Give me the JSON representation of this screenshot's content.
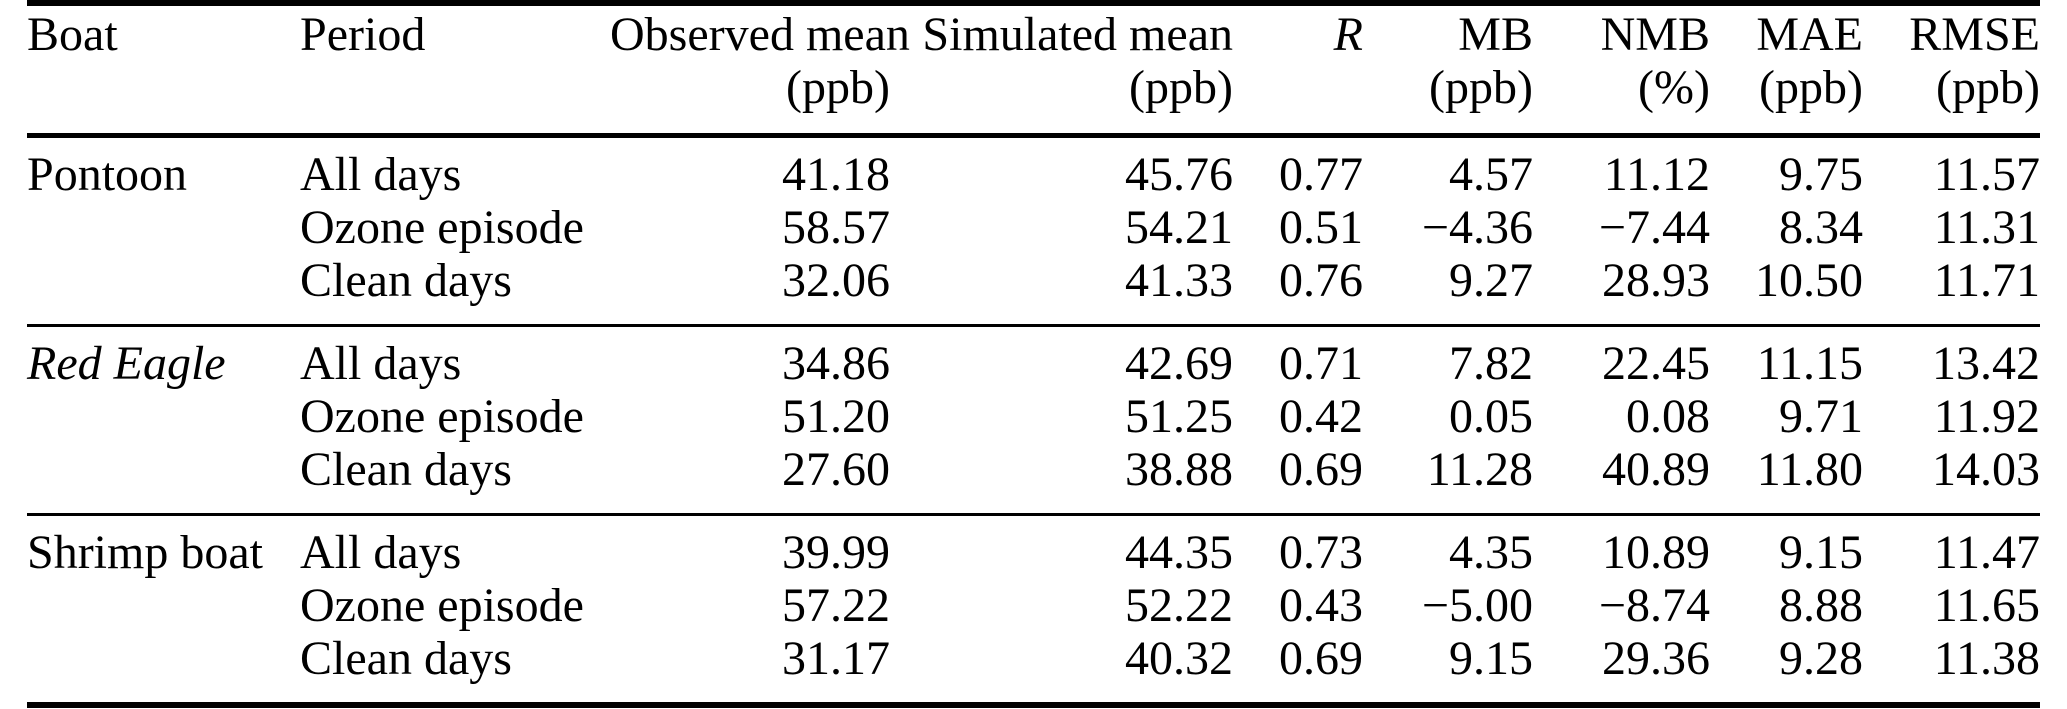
{
  "table": {
    "headers": [
      {
        "label": "Boat",
        "unit": ""
      },
      {
        "label": "Period",
        "unit": ""
      },
      {
        "label": "Observed mean",
        "unit": "(ppb)"
      },
      {
        "label": "Simulated mean",
        "unit": "(ppb)"
      },
      {
        "label": "R",
        "unit": ""
      },
      {
        "label": "MB",
        "unit": "(ppb)"
      },
      {
        "label": "NMB",
        "unit": "(%)"
      },
      {
        "label": "MAE",
        "unit": "(ppb)"
      },
      {
        "label": "RMSE",
        "unit": "(ppb)"
      }
    ],
    "groups": [
      {
        "boat": "Pontoon",
        "rows": [
          {
            "period": "All days",
            "observed_mean": "41.18",
            "simulated_mean": "45.76",
            "r": "0.77",
            "mb": "4.57",
            "nmb": "11.12",
            "mae": "9.75",
            "rmse": "11.57"
          },
          {
            "period": "Ozone episode",
            "observed_mean": "58.57",
            "simulated_mean": "54.21",
            "r": "0.51",
            "mb": "−4.36",
            "nmb": "−7.44",
            "mae": "8.34",
            "rmse": "11.31"
          },
          {
            "period": "Clean days",
            "observed_mean": "32.06",
            "simulated_mean": "41.33",
            "r": "0.76",
            "mb": "9.27",
            "nmb": "28.93",
            "mae": "10.50",
            "rmse": "11.71"
          }
        ]
      },
      {
        "boat": "Red Eagle",
        "rows": [
          {
            "period": "All days",
            "observed_mean": "34.86",
            "simulated_mean": "42.69",
            "r": "0.71",
            "mb": "7.82",
            "nmb": "22.45",
            "mae": "11.15",
            "rmse": "13.42"
          },
          {
            "period": "Ozone episode",
            "observed_mean": "51.20",
            "simulated_mean": "51.25",
            "r": "0.42",
            "mb": "0.05",
            "nmb": "0.08",
            "mae": "9.71",
            "rmse": "11.92"
          },
          {
            "period": "Clean days",
            "observed_mean": "27.60",
            "simulated_mean": "38.88",
            "r": "0.69",
            "mb": "11.28",
            "nmb": "40.89",
            "mae": "11.80",
            "rmse": "14.03"
          }
        ]
      },
      {
        "boat": "Shrimp boat",
        "rows": [
          {
            "period": "All days",
            "observed_mean": "39.99",
            "simulated_mean": "44.35",
            "r": "0.73",
            "mb": "4.35",
            "nmb": "10.89",
            "mae": "9.15",
            "rmse": "11.47"
          },
          {
            "period": "Ozone episode",
            "observed_mean": "57.22",
            "simulated_mean": "52.22",
            "r": "0.43",
            "mb": "−5.00",
            "nmb": "−8.74",
            "mae": "8.88",
            "rmse": "11.65"
          },
          {
            "period": "Clean days",
            "observed_mean": "31.17",
            "simulated_mean": "40.32",
            "r": "0.69",
            "mb": "9.15",
            "nmb": "29.36",
            "mae": "9.28",
            "rmse": "11.38"
          }
        ]
      }
    ]
  }
}
